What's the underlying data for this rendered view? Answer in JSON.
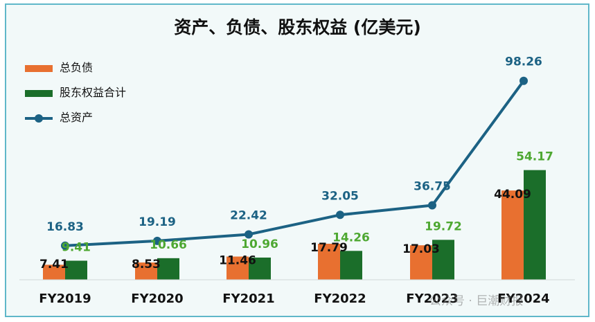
{
  "chart_data": {
    "type": "bar",
    "title": "资产、负债、股东权益 (亿美元)",
    "categories": [
      "FY2019",
      "FY2020",
      "FY2021",
      "FY2022",
      "FY2023",
      "FY2024"
    ],
    "series": [
      {
        "name": "总负债",
        "kind": "bar",
        "color": "#e87030",
        "label_color": "#111111",
        "values": [
          7.41,
          8.53,
          11.46,
          17.79,
          17.03,
          44.09
        ]
      },
      {
        "name": "股东权益合计",
        "kind": "bar",
        "color": "#1b6e2a",
        "label_color": "#4ea832",
        "values": [
          9.41,
          10.66,
          10.96,
          14.26,
          19.72,
          54.17
        ]
      },
      {
        "name": "总资产",
        "kind": "line",
        "color": "#1c6284",
        "label_color": "#1c6284",
        "values": [
          16.83,
          19.19,
          22.42,
          32.05,
          36.75,
          98.26
        ]
      }
    ],
    "ylim": [
      0,
      105
    ],
    "grid": false,
    "legend_position": "top-left"
  },
  "watermark": "公众号 · 巨潮财报"
}
